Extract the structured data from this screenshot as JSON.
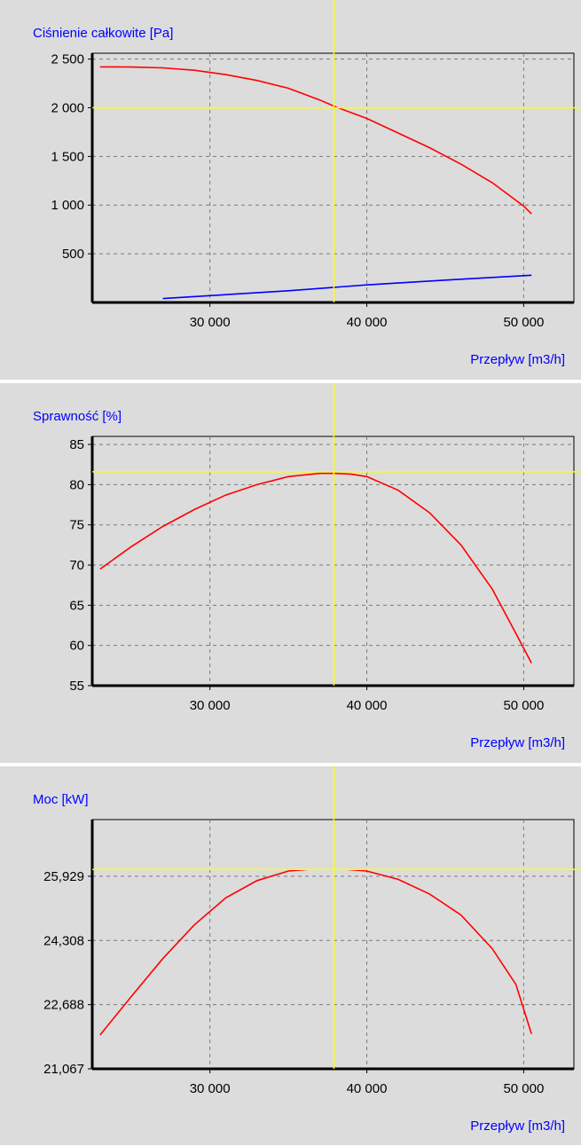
{
  "chart_data": [
    {
      "type": "line",
      "title": "Ciśnienie całkowite [Pa]",
      "xlabel": "Przepływ [m3/h]",
      "ylabel": "",
      "xlim": [
        22500,
        53200
      ],
      "ylim": [
        0,
        2560
      ],
      "xticks": [
        {
          "value": 30000,
          "label": "30 000"
        },
        {
          "value": 40000,
          "label": "40 000"
        },
        {
          "value": 50000,
          "label": "50 000"
        }
      ],
      "yticks": [
        {
          "value": 500,
          "label": "500"
        },
        {
          "value": 1000,
          "label": "1 000"
        },
        {
          "value": 1500,
          "label": "1 500"
        },
        {
          "value": 2000,
          "label": "2 000"
        },
        {
          "value": 2500,
          "label": "2 500"
        }
      ],
      "grid": true,
      "marker": {
        "x": 37900,
        "y": 2000,
        "color": "#ffff00"
      },
      "series": [
        {
          "color": "#ff0000",
          "x": [
            23000,
            25000,
            27000,
            29000,
            31000,
            33000,
            35000,
            37000,
            38000,
            40000,
            42000,
            44000,
            46000,
            48000,
            50000,
            50500
          ],
          "y": [
            2420,
            2418,
            2410,
            2385,
            2340,
            2280,
            2200,
            2080,
            2010,
            1890,
            1740,
            1590,
            1420,
            1230,
            990,
            910
          ]
        },
        {
          "color": "#0000ff",
          "x": [
            27000,
            30000,
            35000,
            40000,
            45000,
            50500
          ],
          "y": [
            40,
            70,
            120,
            180,
            230,
            280
          ]
        }
      ]
    },
    {
      "type": "line",
      "title": "Sprawność [%]",
      "xlabel": "Przepływ [m3/h]",
      "ylabel": "",
      "xlim": [
        22500,
        53200
      ],
      "ylim": [
        55,
        86
      ],
      "xticks": [
        {
          "value": 30000,
          "label": "30 000"
        },
        {
          "value": 40000,
          "label": "40 000"
        },
        {
          "value": 50000,
          "label": "50 000"
        }
      ],
      "yticks": [
        {
          "value": 55,
          "label": "55"
        },
        {
          "value": 60,
          "label": "60"
        },
        {
          "value": 65,
          "label": "65"
        },
        {
          "value": 70,
          "label": "70"
        },
        {
          "value": 75,
          "label": "75"
        },
        {
          "value": 80,
          "label": "80"
        },
        {
          "value": 85,
          "label": "85"
        }
      ],
      "grid": true,
      "marker": {
        "x": 37900,
        "y": 81.6,
        "color": "#ffff00"
      },
      "series": [
        {
          "color": "#ff0000",
          "x": [
            23000,
            25000,
            27000,
            29000,
            31000,
            33000,
            35000,
            37000,
            38000,
            39000,
            40000,
            42000,
            44000,
            46000,
            48000,
            49500,
            50500
          ],
          "y": [
            69.5,
            72.3,
            74.8,
            76.9,
            78.7,
            80.0,
            81.0,
            81.4,
            81.4,
            81.3,
            81.0,
            79.3,
            76.5,
            72.5,
            67.0,
            61.5,
            57.8
          ]
        }
      ]
    },
    {
      "type": "line",
      "title": "Moc [kW]",
      "xlabel": "Przepływ [m3/h]",
      "ylabel": "",
      "xlim": [
        22500,
        53200
      ],
      "ylim": [
        21.067,
        27.36
      ],
      "xticks": [
        {
          "value": 30000,
          "label": "30 000"
        },
        {
          "value": 40000,
          "label": "40 000"
        },
        {
          "value": 50000,
          "label": "50 000"
        }
      ],
      "yticks": [
        {
          "value": 21.067,
          "label": "21,067"
        },
        {
          "value": 22.688,
          "label": "22,688"
        },
        {
          "value": 24.308,
          "label": "24,308"
        },
        {
          "value": 25.929,
          "label": "25,929"
        }
      ],
      "grid": true,
      "marker": {
        "x": 37900,
        "y": 26.1,
        "color": "#ffff00"
      },
      "series": [
        {
          "color": "#ff0000",
          "x": [
            23000,
            25000,
            27000,
            29000,
            31000,
            33000,
            35000,
            36200
          ],
          "y": [
            21.92,
            22.9,
            23.85,
            24.7,
            25.38,
            25.82,
            26.06,
            26.1
          ]
        },
        {
          "color": "#ff0000",
          "x": [
            38800,
            40000,
            42000,
            44000,
            46000,
            48000,
            49500,
            50500
          ],
          "y": [
            26.1,
            26.06,
            25.85,
            25.48,
            24.95,
            24.1,
            23.2,
            21.95
          ]
        }
      ]
    }
  ]
}
